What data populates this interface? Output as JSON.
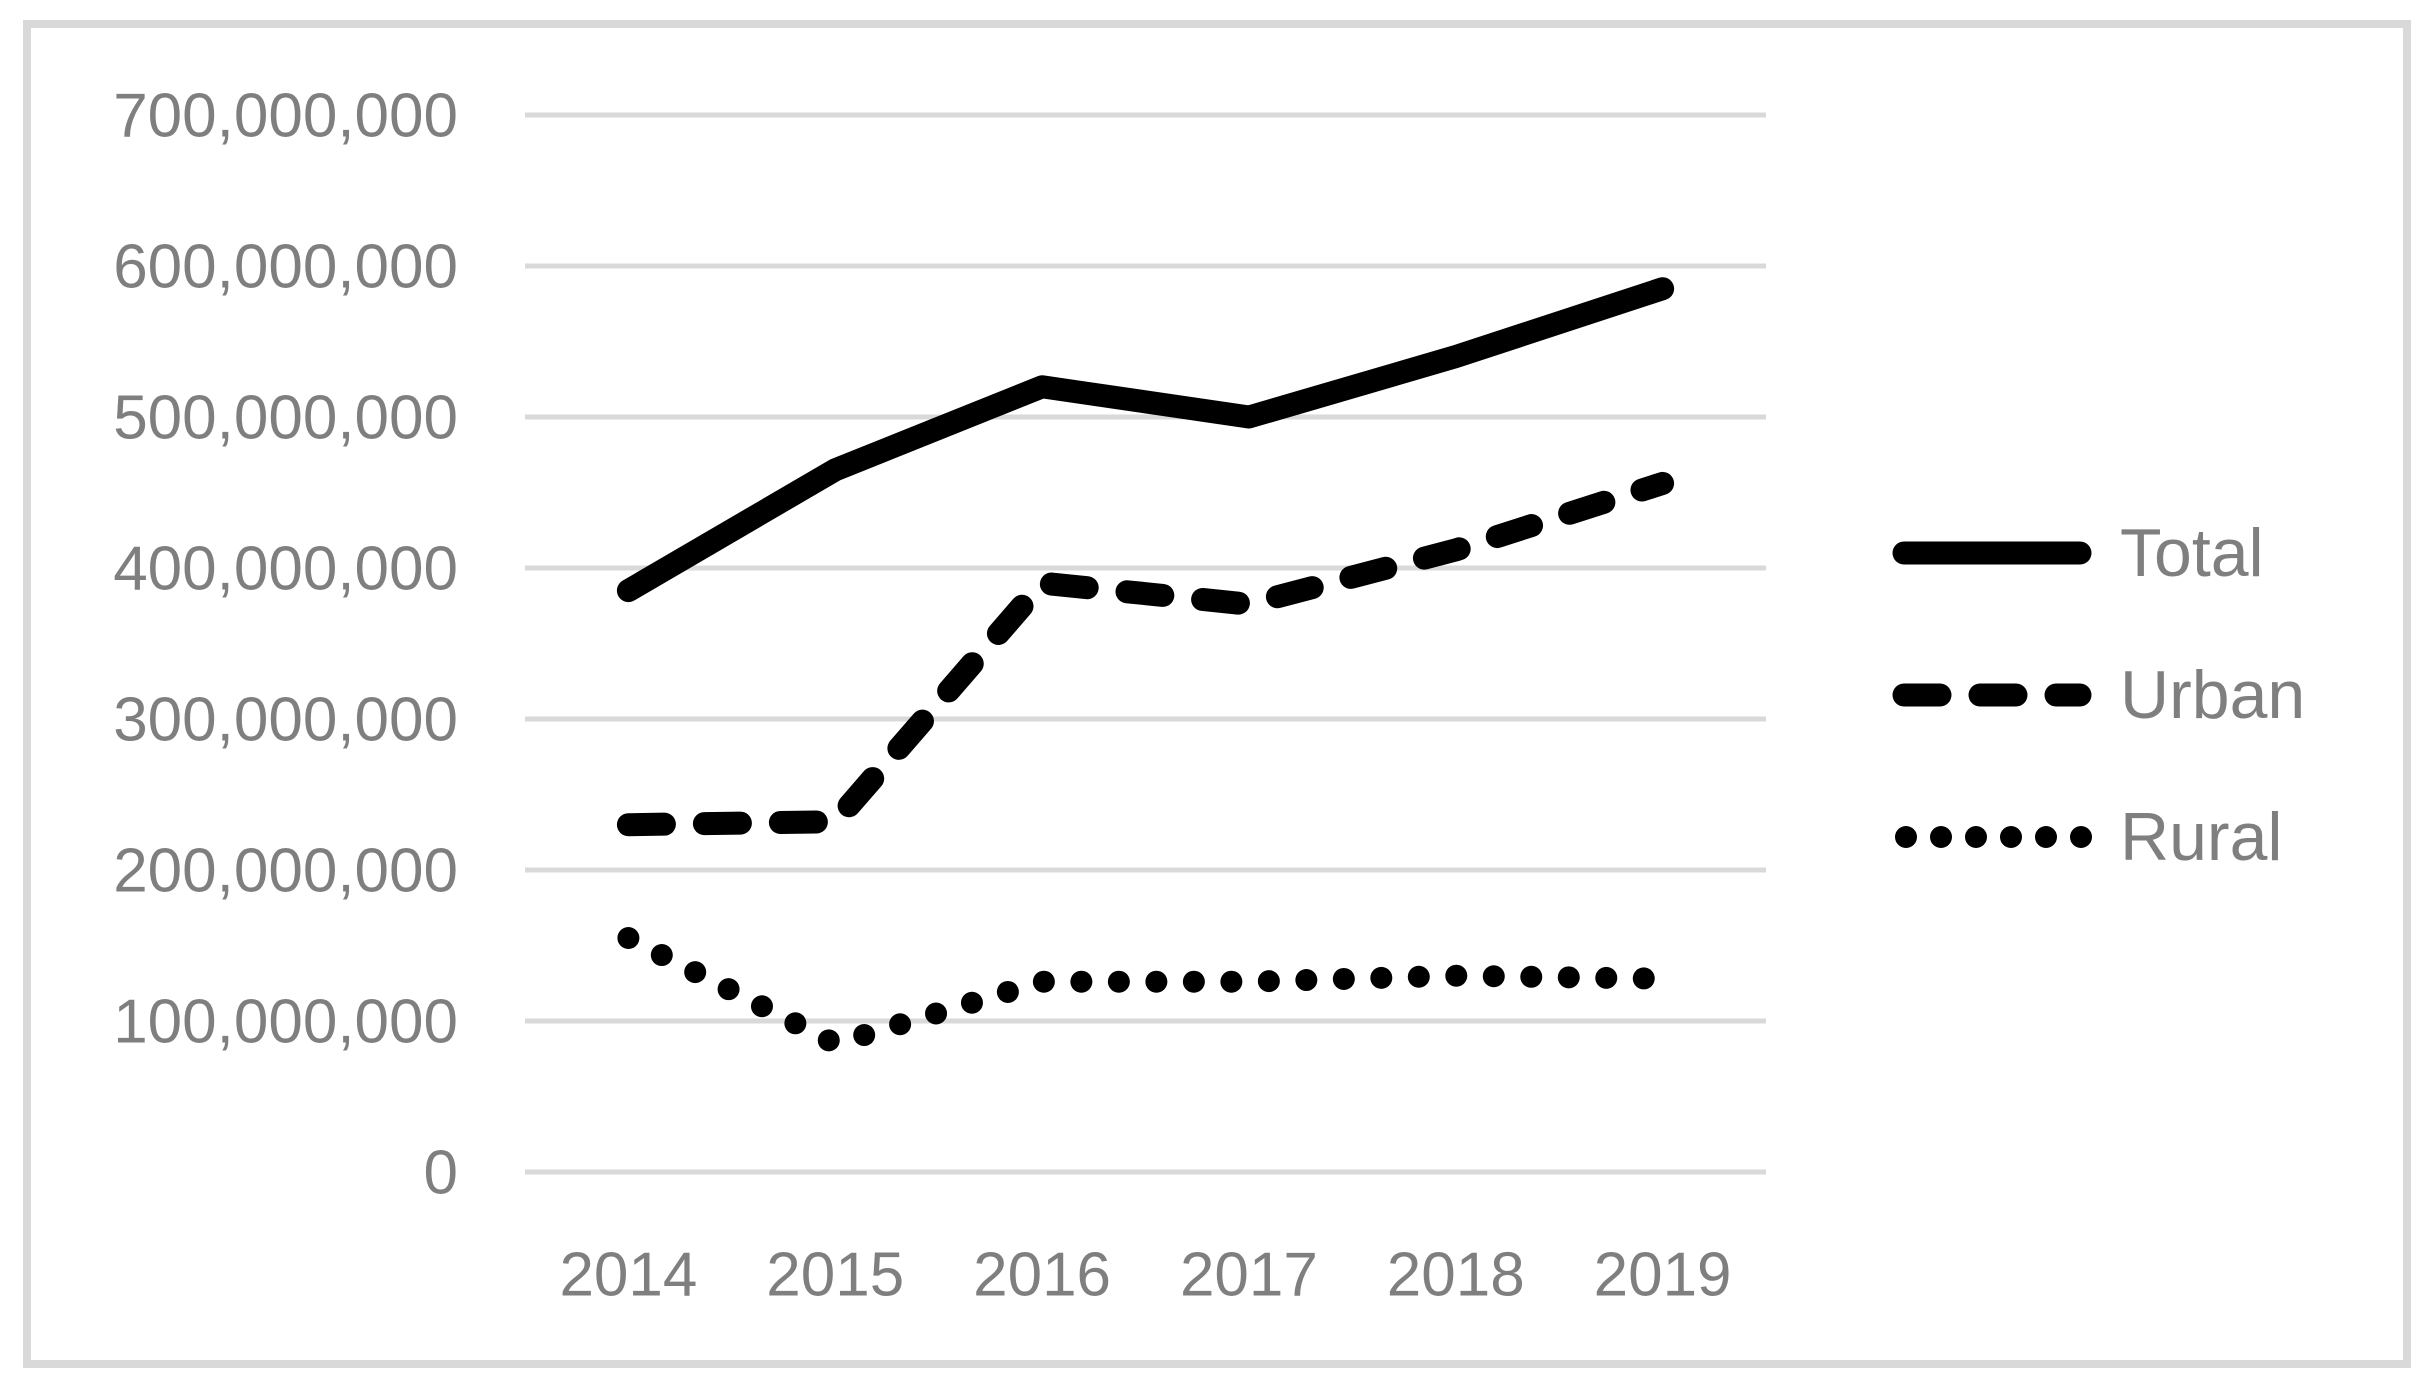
{
  "chart_data": {
    "type": "line",
    "title": "",
    "xlabel": "",
    "ylabel": "",
    "categories": [
      "2014",
      "2015",
      "2016",
      "2017",
      "2018",
      "2019"
    ],
    "series": [
      {
        "name": "Total",
        "style": "solid",
        "values": [
          385000000,
          465000000,
          520000000,
          500000000,
          540000000,
          585000000
        ]
      },
      {
        "name": "Urban",
        "style": "dashed",
        "values": [
          230000000,
          232000000,
          390000000,
          376000000,
          412000000,
          456000000
        ]
      },
      {
        "name": "Rural",
        "style": "dotted",
        "values": [
          155000000,
          85000000,
          126000000,
          126000000,
          130000000,
          128000000
        ]
      }
    ],
    "ylim": [
      0,
      700000000
    ],
    "ytick_step": 100000000,
    "ytick_labels": [
      "0",
      "100,000,000",
      "200,000,000",
      "300,000,000",
      "400,000,000",
      "500,000,000",
      "600,000,000",
      "700,000,000"
    ],
    "grid": true,
    "legend_position": "right"
  },
  "legend": {
    "items": [
      {
        "label": "Total",
        "style": "solid"
      },
      {
        "label": "Urban",
        "style": "dashed"
      },
      {
        "label": "Rural",
        "style": "dotted"
      }
    ]
  },
  "colors": {
    "series_line": "#000000",
    "axis_text": "#7f7f7f",
    "gridline": "#d9d9d9",
    "frame_border": "#d9d9d9",
    "background": "#ffffff"
  }
}
